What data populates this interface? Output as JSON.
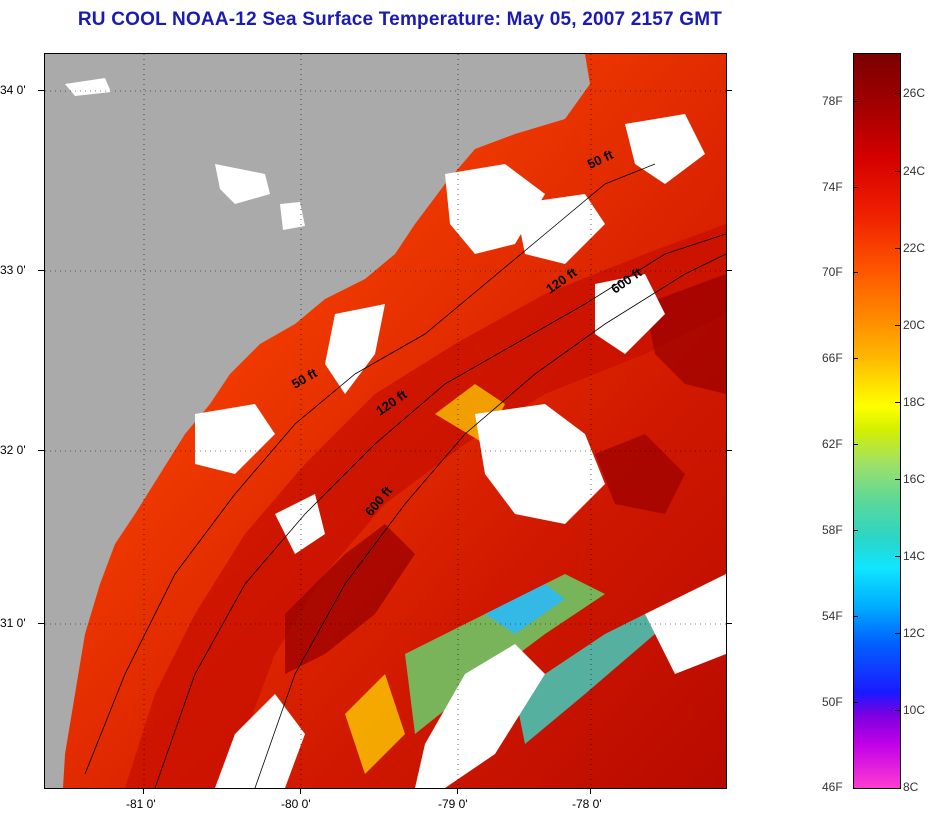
{
  "title": "RU COOL  NOAA-12  Sea Surface Temperature:  May 05, 2007 2157 GMT",
  "map": {
    "lat_labels": [
      "34 0'",
      "33 0'",
      "32 0'",
      "31 0'"
    ],
    "lon_labels": [
      "-81 0'",
      "-80 0'",
      "-79 0'",
      "-78 0'"
    ],
    "contour_labels": [
      "50 ft",
      "120 ft",
      "600 ft",
      "50 ft",
      "120 ft",
      "600 ft"
    ],
    "colors": {
      "land": "#aaaaaa",
      "cloud": "#ffffff",
      "warm": "#e02000",
      "hot": "#a00000"
    }
  },
  "colorbar": {
    "fahrenheit_labels": [
      "78F",
      "74F",
      "70F",
      "66F",
      "62F",
      "58F",
      "54F",
      "50F",
      "46F"
    ],
    "celsius_labels": [
      "26C",
      "24C",
      "22C",
      "20C",
      "18C",
      "16C",
      "14C",
      "12C",
      "10C",
      "8C"
    ]
  }
}
